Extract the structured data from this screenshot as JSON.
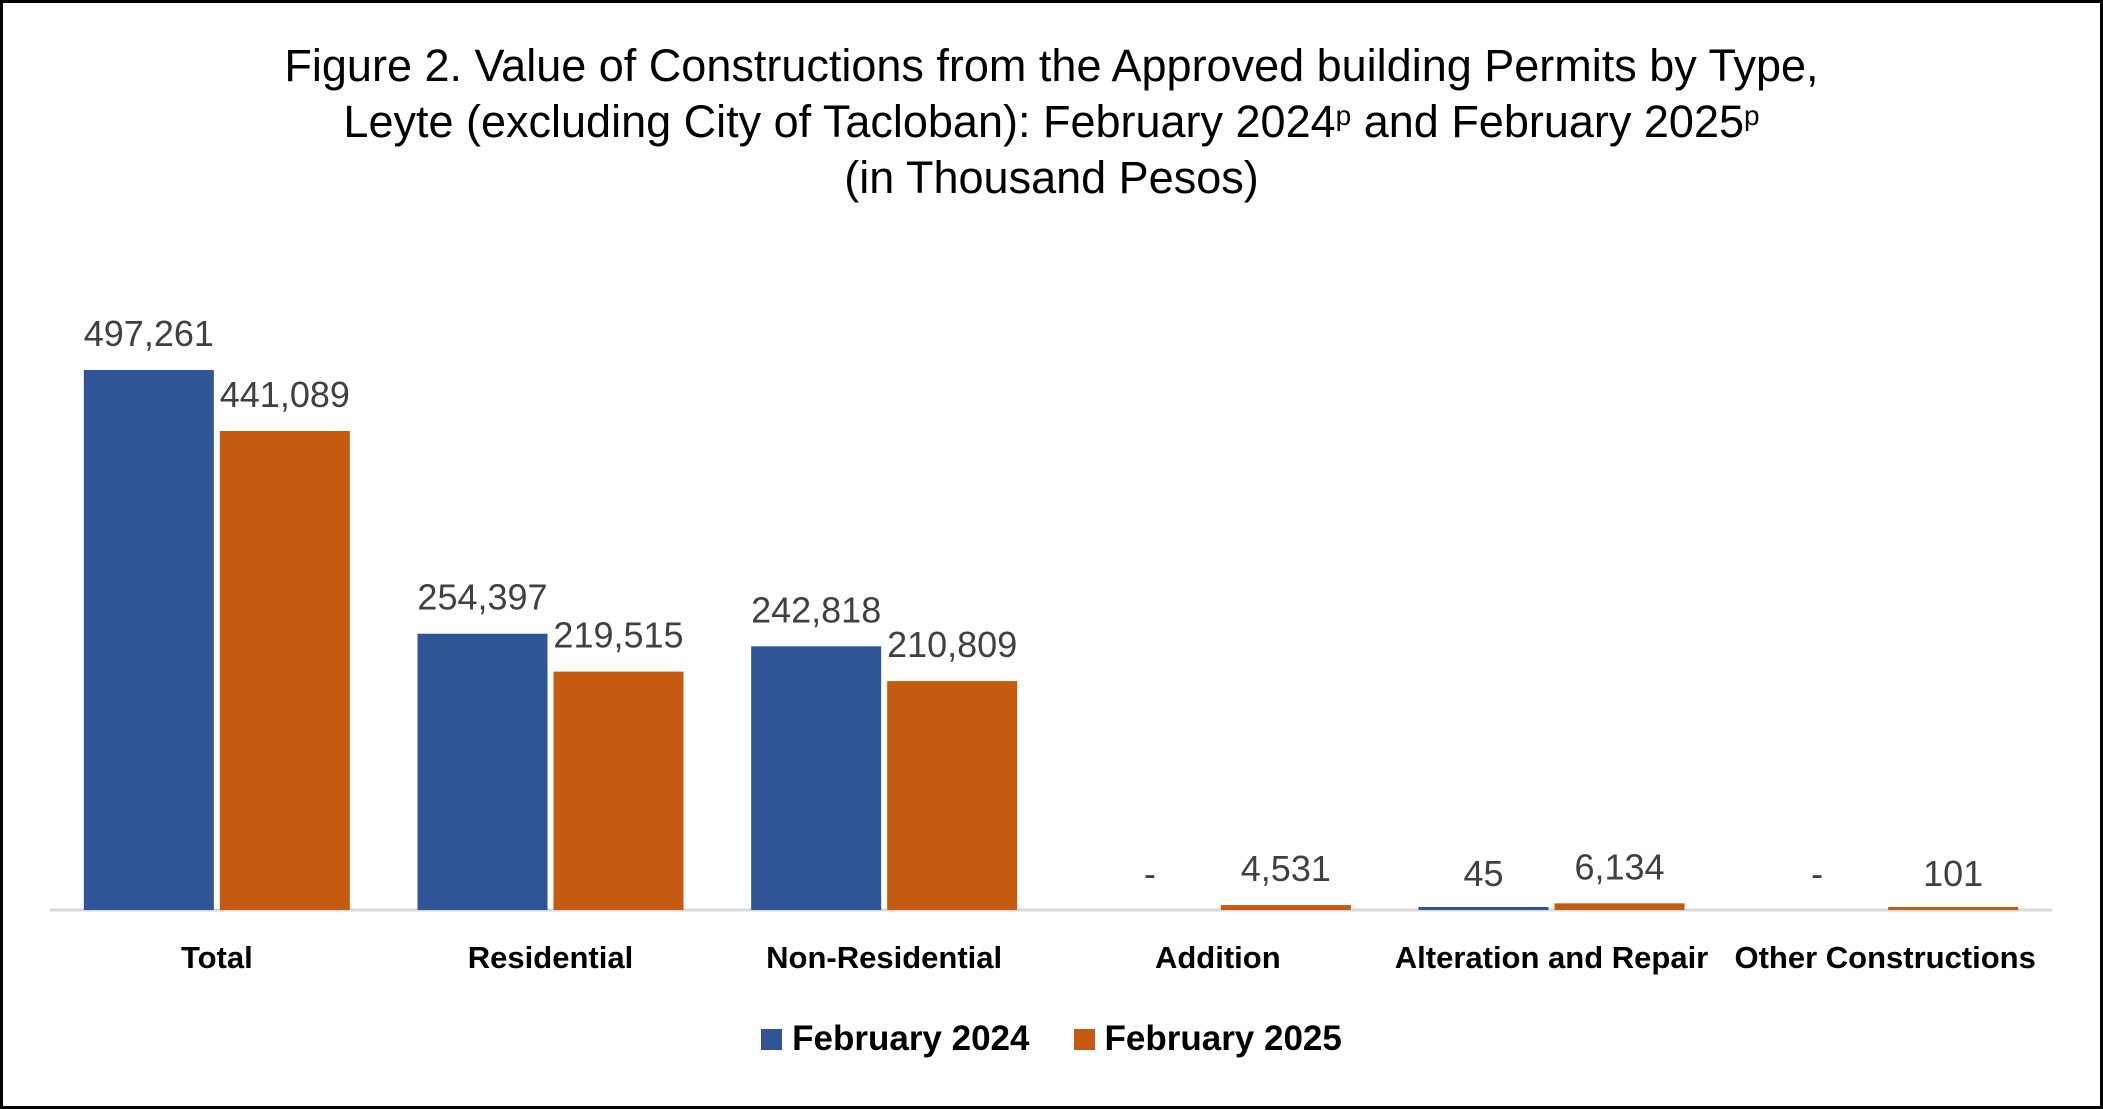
{
  "title": {
    "line1": "Figure 2. Value of Constructions from the Approved building Permits by Type,",
    "line2_a": "Leyte (excluding City of Tacloban): February 2024",
    "line2_b": " and February 2025",
    "superscript": "p",
    "line3": "(in Thousand Pesos)"
  },
  "colors": {
    "series_2024": "#2F5597",
    "series_2025": "#C55A11",
    "axis": "#D9D9D9",
    "value_label": "#404040"
  },
  "chart_data": {
    "type": "bar",
    "categories": [
      "Total",
      "Residential",
      "Non-Residential",
      "Addition",
      "Alteration and Repair",
      "Other Constructions"
    ],
    "series": [
      {
        "name": "February 2024",
        "values": [
          497261,
          254397,
          242818,
          0,
          45,
          0
        ],
        "labels": [
          "497,261",
          "254,397",
          "242,818",
          "-",
          "45",
          "-"
        ]
      },
      {
        "name": "February 2025",
        "values": [
          441089,
          219515,
          210809,
          4531,
          6134,
          101
        ],
        "labels": [
          "441,089",
          "219,515",
          "210,809",
          "4,531",
          "6,134",
          "101"
        ]
      }
    ],
    "ylim": [
      0,
      497261
    ],
    "gridlines": false,
    "legend_position": "bottom"
  }
}
